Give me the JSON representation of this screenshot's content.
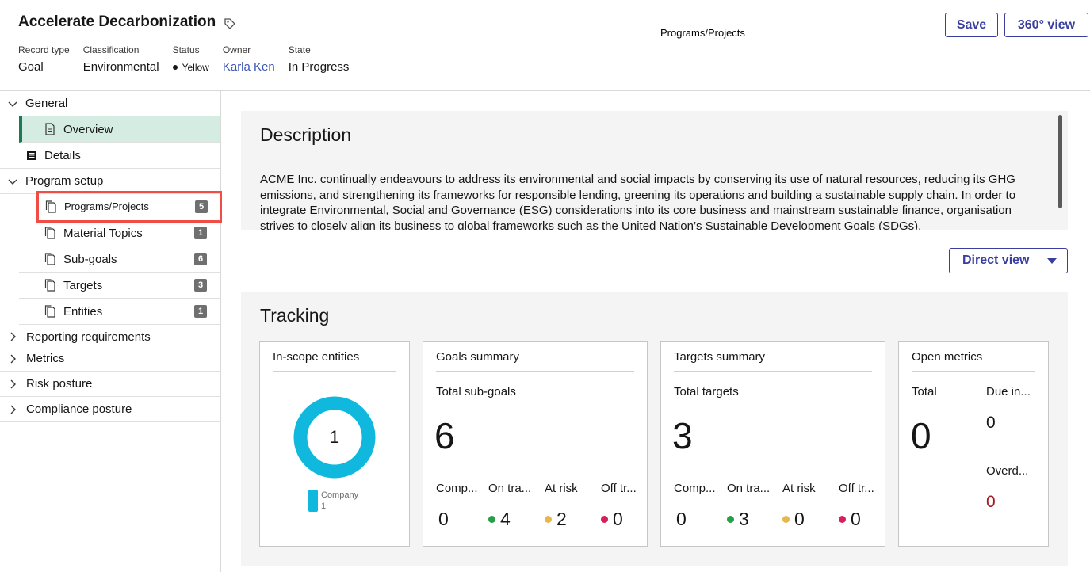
{
  "header": {
    "title": "Accelerate Decarbonization",
    "center_title": "Programs/Projects",
    "save_label": "Save",
    "view360_label": "360° view",
    "meta": {
      "record_type_label": "Record type",
      "record_type_value": "Goal",
      "classification_label": "Classification",
      "classification_value": "Environmental",
      "status_label": "Status",
      "status_value": "Yellow",
      "owner_label": "Owner",
      "owner_value": "Karla Ken",
      "state_label": "State",
      "state_value": "In Progress"
    }
  },
  "sidebar": {
    "general": {
      "label": "General",
      "items": [
        {
          "label": "Overview"
        },
        {
          "label": "Details"
        }
      ]
    },
    "program_setup": {
      "label": "Program setup",
      "items": [
        {
          "label": "Programs/Projects",
          "count": "5"
        },
        {
          "label": "Material Topics",
          "count": "1"
        },
        {
          "label": "Sub-goals",
          "count": "6"
        },
        {
          "label": "Targets",
          "count": "3"
        },
        {
          "label": "Entities",
          "count": "1"
        }
      ]
    },
    "collapsed": [
      {
        "label": "Reporting requirements"
      },
      {
        "label": "Metrics"
      },
      {
        "label": "Risk posture"
      },
      {
        "label": "Compliance posture"
      }
    ]
  },
  "description": {
    "title": "Description",
    "text": "ACME Inc. continually endeavours to address its environmental and social impacts by conserving its use of natural resources, reducing its GHG emissions, and strengthening its frameworks for responsible lending, greening its operations and building a sustainable supply chain. In order to integrate Environmental, Social and Governance (ESG) considerations into its core business and mainstream sustainable finance, organisation strives to closely align its business to global frameworks such as the United Nation’s Sustainable Development Goals (SDGs)."
  },
  "direct_view_label": "Direct view",
  "tracking": {
    "title": "Tracking",
    "in_scope": {
      "title": "In-scope entities",
      "center_value": "1",
      "legend_name": "Company",
      "legend_value": "1",
      "ring_color": "#0fb8dc"
    },
    "goals": {
      "title": "Goals summary",
      "total_label": "Total sub-goals",
      "total_value": "6",
      "stats": [
        {
          "label": "Comp...",
          "value": "0",
          "color": ""
        },
        {
          "label": "On tra...",
          "value": "4",
          "color": "#24a148"
        },
        {
          "label": "At risk",
          "value": "2",
          "color": "#e8b74a"
        },
        {
          "label": "Off tr...",
          "value": "0",
          "color": "#da1e5a"
        }
      ]
    },
    "targets": {
      "title": "Targets summary",
      "total_label": "Total targets",
      "total_value": "3",
      "stats": [
        {
          "label": "Comp...",
          "value": "0",
          "color": ""
        },
        {
          "label": "On tra...",
          "value": "3",
          "color": "#24a148"
        },
        {
          "label": "At risk",
          "value": "0",
          "color": "#e8b74a"
        },
        {
          "label": "Off tr...",
          "value": "0",
          "color": "#da1e5a"
        }
      ]
    },
    "metrics": {
      "title": "Open metrics",
      "total_label": "Total",
      "total_value": "0",
      "due_label": "Due in...",
      "due_value": "0",
      "overdue_label": "Overd...",
      "overdue_value": "0",
      "overdue_color": "#a2191f"
    }
  }
}
